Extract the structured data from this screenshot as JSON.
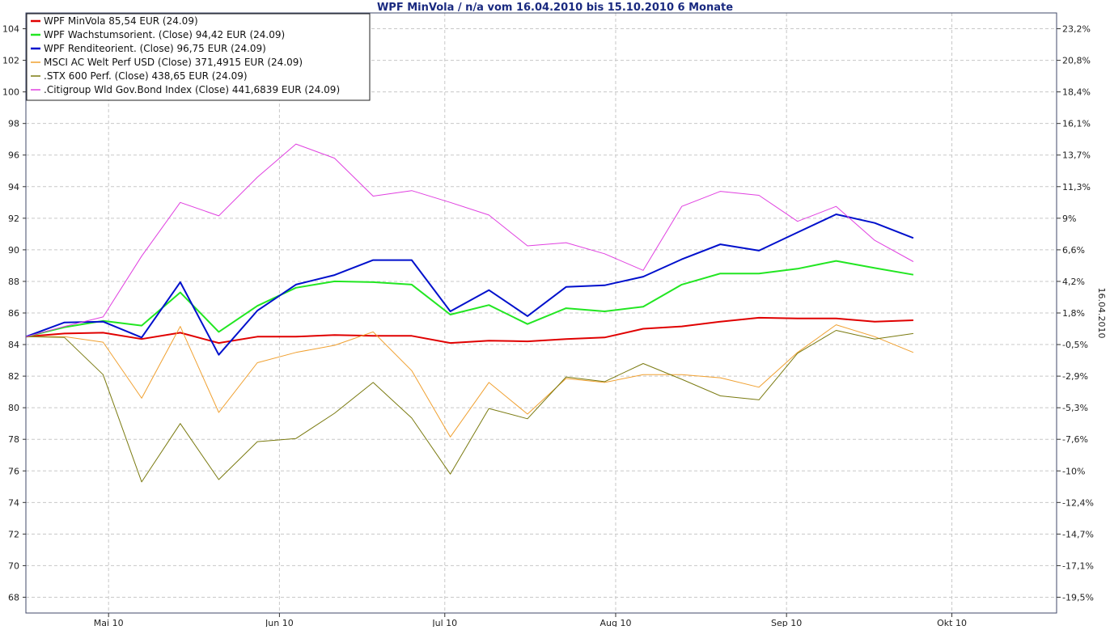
{
  "chart_data": {
    "type": "line",
    "title": "WPF MinVola / n/a vom 16.04.2010 bis 15.10.2010 6 Monate",
    "y_left": {
      "min": 67,
      "max": 105,
      "ticks": [
        68,
        70,
        72,
        74,
        76,
        78,
        80,
        82,
        84,
        86,
        88,
        90,
        92,
        94,
        96,
        98,
        100,
        102,
        104
      ]
    },
    "y_right": {
      "label": "16.04.2010",
      "ticks": [
        {
          "v": 104,
          "label": "23,2%"
        },
        {
          "v": 102,
          "label": "20,8%"
        },
        {
          "v": 100,
          "label": "18,4%"
        },
        {
          "v": 98,
          "label": "16,1%"
        },
        {
          "v": 96,
          "label": "13,7%"
        },
        {
          "v": 94,
          "label": "11,3%"
        },
        {
          "v": 92,
          "label": "9%"
        },
        {
          "v": 90,
          "label": "6,6%"
        },
        {
          "v": 88,
          "label": "4,2%"
        },
        {
          "v": 86,
          "label": "1,8%"
        },
        {
          "v": 84,
          "label": "-0,5%"
        },
        {
          "v": 82,
          "label": "-2,9%"
        },
        {
          "v": 80,
          "label": "-5,3%"
        },
        {
          "v": 78,
          "label": "-7,6%"
        },
        {
          "v": 76,
          "label": "-10%"
        },
        {
          "v": 74,
          "label": "-12,4%"
        },
        {
          "v": 72,
          "label": "-14,7%"
        },
        {
          "v": 70,
          "label": "-17,1%"
        },
        {
          "v": 68,
          "label": "-19,5%"
        }
      ]
    },
    "x_axis": {
      "start": "2010-04-16",
      "end": "2010-10-15",
      "min": "2010-04-16",
      "max": "2010-10-20",
      "ticks": [
        {
          "date": "2010-05-01",
          "label": "Mai 10"
        },
        {
          "date": "2010-06-01",
          "label": "Jun 10"
        },
        {
          "date": "2010-07-01",
          "label": "Jul 10"
        },
        {
          "date": "2010-08-01",
          "label": "Aug 10"
        },
        {
          "date": "2010-09-01",
          "label": "Sep 10"
        },
        {
          "date": "2010-10-01",
          "label": "Okt 10"
        }
      ]
    },
    "grid": true,
    "legend_position": "top-left",
    "dates": [
      "2010-04-16",
      "2010-04-23",
      "2010-04-30",
      "2010-05-07",
      "2010-05-14",
      "2010-05-21",
      "2010-05-28",
      "2010-06-04",
      "2010-06-11",
      "2010-06-18",
      "2010-06-25",
      "2010-07-02",
      "2010-07-09",
      "2010-07-16",
      "2010-07-23",
      "2010-07-30",
      "2010-08-06",
      "2010-08-13",
      "2010-08-20",
      "2010-08-27",
      "2010-09-03",
      "2010-09-10",
      "2010-09-17",
      "2010-09-24"
    ],
    "series": [
      {
        "name": "WPF MinVola 85,54 EUR (24.09)",
        "color": "#e00000",
        "width": 2,
        "values": [
          84.5,
          84.7,
          84.75,
          84.35,
          84.75,
          84.1,
          84.5,
          84.5,
          84.6,
          84.55,
          84.55,
          84.1,
          84.25,
          84.2,
          84.35,
          84.45,
          85.0,
          85.15,
          85.45,
          85.7,
          85.65,
          85.65,
          85.45,
          85.54
        ]
      },
      {
        "name": "WPF Wachstumsorient. (Close) 94,42 EUR (24.09)",
        "color": "#22e622",
        "width": 2,
        "values": [
          84.5,
          85.1,
          85.5,
          85.2,
          87.3,
          84.8,
          86.45,
          87.6,
          88.0,
          87.95,
          87.8,
          85.9,
          86.5,
          85.3,
          86.3,
          86.1,
          86.4,
          87.8,
          88.5,
          88.5,
          88.8,
          89.3,
          88.85,
          88.42
        ]
      },
      {
        "name": "WPF Renditeorient. (Close) 96,75 EUR (24.09)",
        "color": "#0010cc",
        "width": 2,
        "values": [
          84.5,
          85.4,
          85.45,
          84.45,
          87.95,
          83.35,
          86.15,
          87.8,
          88.4,
          89.35,
          89.35,
          86.1,
          87.45,
          85.8,
          87.65,
          87.75,
          88.3,
          89.4,
          90.35,
          89.95,
          91.1,
          92.25,
          91.7,
          90.75
        ]
      },
      {
        "name": "MSCI AC Welt Perf USD (Close) 371,4915 EUR (24.09)",
        "color": "#f0a030",
        "width": 1,
        "values": [
          84.5,
          84.5,
          84.15,
          80.6,
          85.15,
          79.7,
          82.85,
          83.5,
          83.95,
          84.8,
          82.35,
          78.15,
          81.6,
          79.6,
          81.85,
          81.6,
          82.1,
          82.1,
          81.9,
          81.3,
          83.5,
          85.25,
          84.5,
          83.5
        ]
      },
      {
        "name": ".STX 600 Perf. (Close) 438,65 EUR (24.09)",
        "color": "#7a7a10",
        "width": 1,
        "values": [
          84.5,
          84.45,
          82.1,
          75.3,
          79.0,
          75.45,
          77.85,
          78.05,
          79.65,
          81.6,
          79.35,
          75.8,
          79.95,
          79.3,
          81.95,
          81.65,
          82.8,
          81.8,
          80.75,
          80.5,
          83.45,
          84.9,
          84.35,
          84.7
        ]
      },
      {
        "name": ".Citigroup Wld Gov.Bond Index (Close) 441,6839 EUR (24.09)",
        "color": "#e040e0",
        "width": 1,
        "values": [
          84.5,
          85.15,
          85.75,
          89.6,
          93.0,
          92.15,
          94.6,
          96.7,
          95.8,
          93.4,
          93.75,
          93.0,
          92.2,
          90.25,
          90.45,
          89.75,
          88.7,
          92.75,
          93.7,
          93.45,
          91.8,
          92.75,
          90.6,
          89.25
        ]
      }
    ]
  }
}
